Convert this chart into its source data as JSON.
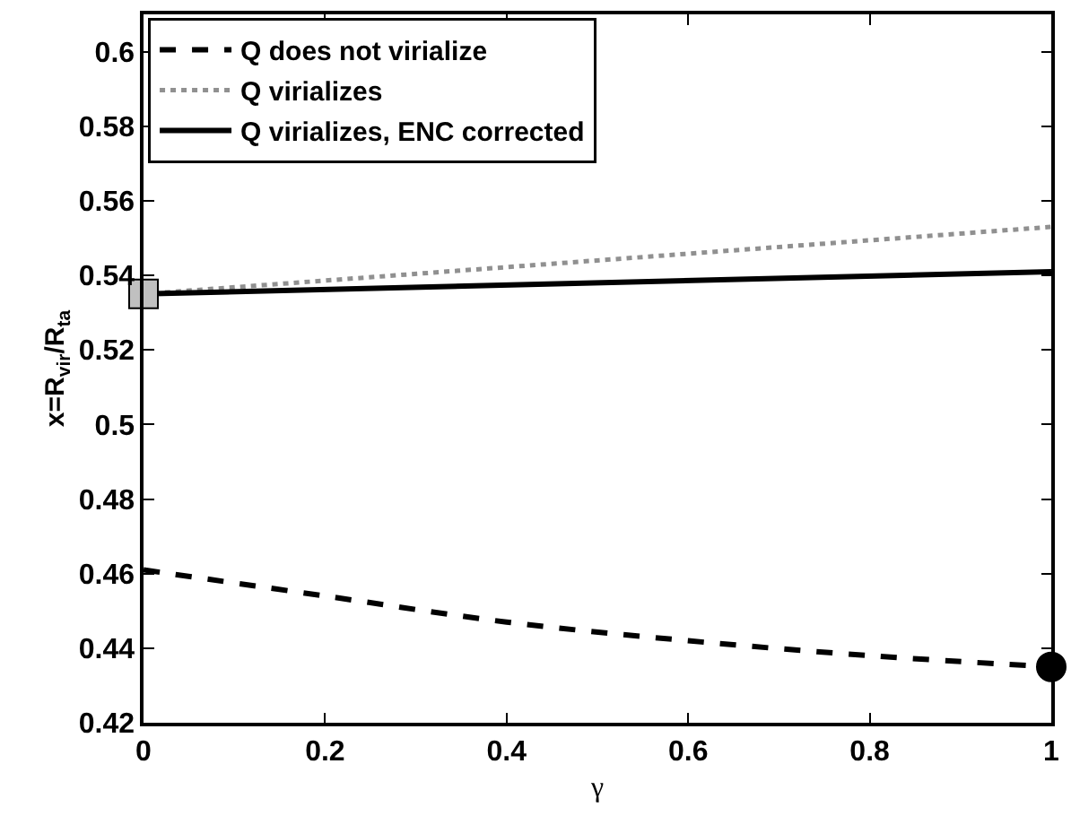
{
  "chart_data": {
    "type": "line",
    "xlabel": "γ",
    "ylabel": "x=R$_{vir}$/R$_{ta}$",
    "xlim": [
      0,
      1
    ],
    "ylim": [
      0.42,
      0.61
    ],
    "xticks": [
      0,
      0.2,
      0.4,
      0.6,
      0.8,
      1
    ],
    "yticks": [
      0.42,
      0.44,
      0.46,
      0.48,
      0.5,
      0.52,
      0.54,
      0.56,
      0.58,
      0.6
    ],
    "legend": "top left",
    "marker": "none",
    "series": [
      {
        "name": "Q does not virialize",
        "color": "#000000",
        "line_style": "dashed",
        "x": [
          0,
          0.2,
          0.4,
          0.6,
          0.8,
          1
        ],
        "values": [
          0.461,
          0.454,
          0.447,
          0.442,
          0.438,
          0.435
        ]
      },
      {
        "name": "Q virializes",
        "color": "#909090",
        "line_style": "dotted",
        "x": [
          0,
          1
        ],
        "values": [
          0.535,
          0.553
        ]
      },
      {
        "name": "Q virializes, ENC corrected",
        "color": "#000000",
        "line_style": "solid",
        "x": [
          0,
          1
        ],
        "values": [
          0.535,
          0.541
        ]
      },
      {
        "type": "scatter",
        "marker": "square",
        "color": "#c0c0c0",
        "x": [
          0
        ],
        "values": [
          0.535
        ]
      },
      {
        "type": "scatter",
        "marker": "circle",
        "color": "#000000",
        "x": [
          1
        ],
        "values": [
          0.435
        ]
      }
    ]
  }
}
